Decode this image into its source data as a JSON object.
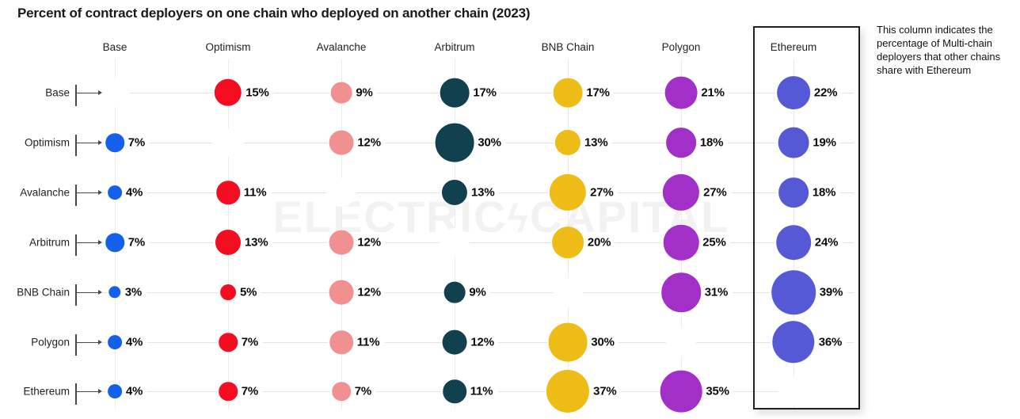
{
  "title": "Percent of contract deployers on one chain who deployed on another chain (2023)",
  "annotation": "This column indicates the percentage of Multi-chain deployers that other chains share with Ethereum",
  "watermark": {
    "left": "ELECTRIC",
    "bolt": "ϟ",
    "right": "CAPITAL"
  },
  "chart_data": {
    "type": "heatmap",
    "subtype": "bubble-matrix",
    "unit": "%",
    "title": "Percent of contract deployers on one chain who deployed on another chain (2023)",
    "columns": [
      "Base",
      "Optimism",
      "Avalanche",
      "Arbitrum",
      "BNB Chain",
      "Polygon",
      "Ethereum"
    ],
    "rows": [
      "Base",
      "Optimism",
      "Avalanche",
      "Arbitrum",
      "BNB Chain",
      "Polygon",
      "Ethereum"
    ],
    "column_colors": [
      "#1560ea",
      "#f40d20",
      "#f19090",
      "#11404f",
      "#eebc17",
      "#a22fc8",
      "#5659d6"
    ],
    "highlighted_column": "Ethereum",
    "matrix": [
      [
        null,
        15,
        9,
        17,
        17,
        21,
        22
      ],
      [
        7,
        null,
        12,
        30,
        13,
        18,
        19
      ],
      [
        4,
        11,
        null,
        13,
        27,
        27,
        18
      ],
      [
        7,
        13,
        12,
        null,
        20,
        25,
        24
      ],
      [
        3,
        5,
        12,
        9,
        null,
        31,
        39
      ],
      [
        4,
        7,
        11,
        12,
        30,
        null,
        36
      ],
      [
        4,
        7,
        7,
        11,
        37,
        35,
        null
      ]
    ],
    "value_label_format": "{v}%",
    "diagonal": "blank",
    "grid": true,
    "legend_position": "none"
  }
}
